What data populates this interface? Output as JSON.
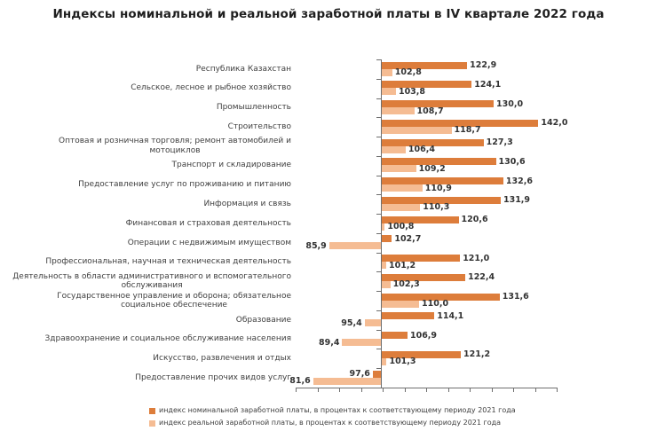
{
  "title": "Индексы номинальной и реальной заработной платы в IV квартале 2022 года",
  "legend": [
    {
      "label": "индекс номинальной заработной платы, в процентах к соответствующему периоду 2021 года",
      "color": "#DD7D3B"
    },
    {
      "label": "индекс реальной заработной платы, в процентах к соответствующему периоду 2021 года",
      "color": "#F5BC93"
    }
  ],
  "chart_data": {
    "type": "bar",
    "orientation": "horizontal",
    "title": "Индексы номинальной и реальной заработной платы в IV квартале 2022 года",
    "xlabel": "",
    "ylabel": "",
    "baseline": 100,
    "axis": {
      "min": 77,
      "max": 147,
      "tick_step": 5,
      "tick_labels_visible": false
    },
    "value_format": "comma-decimal-1",
    "categories": [
      "Республика Казахстан",
      "Сельское, лесное и рыбное хозяйство",
      "Промышленность",
      "Строительство",
      "Оптовая и розничная торговля; ремонт автомобилей и\nмотоциклов",
      "Транспорт и складирование",
      "Предоставление услуг по проживанию и питанию",
      "Информация и связь",
      "Финансовая и страховая деятельность",
      "Операции с недвижимым имуществом",
      "Профессиональная, научная и техническая деятельность",
      "Деятельность в области административного и вспомогательного\nобслуживания",
      "Государственное управление и оборона; обязательное\nсоциальное обеспечение",
      "Образование",
      "Здравоохранение и социальное обслуживание населения",
      "Искусство, развлечения и отдых",
      "Предоставление прочих видов услуг"
    ],
    "series": [
      {
        "name": "индекс номинальной заработной платы",
        "color": "#DD7D3B",
        "values": [
          122.9,
          124.1,
          130.0,
          142.0,
          127.3,
          130.6,
          132.6,
          131.9,
          120.6,
          102.7,
          121.0,
          122.4,
          131.6,
          114.1,
          106.9,
          121.2,
          97.6
        ]
      },
      {
        "name": "индекс реальной заработной платы",
        "color": "#F5BC93",
        "values": [
          102.8,
          103.8,
          108.7,
          118.7,
          106.4,
          109.2,
          110.9,
          110.3,
          100.8,
          85.9,
          101.2,
          102.3,
          110.0,
          95.4,
          89.4,
          101.3,
          81.6
        ]
      }
    ]
  }
}
